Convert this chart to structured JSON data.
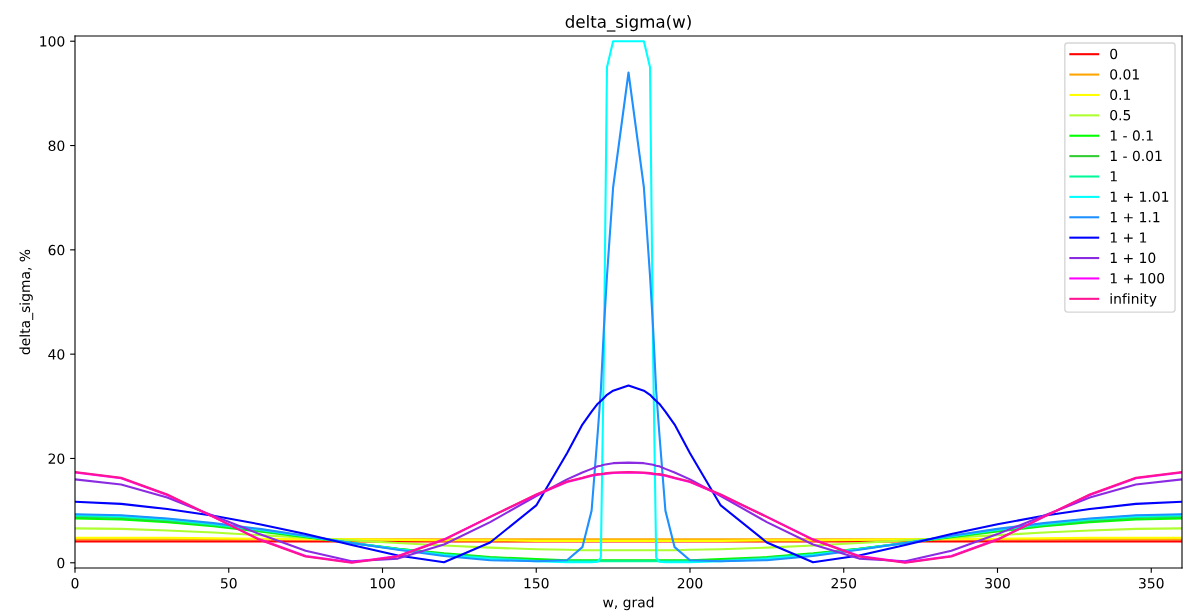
{
  "chart_data": {
    "type": "line",
    "title": "delta_sigma(w)",
    "xlabel": "w, grad",
    "ylabel": "delta_sigma, %",
    "x": [
      0,
      15,
      30,
      45,
      60,
      75,
      90,
      105,
      120,
      135,
      150,
      160,
      165,
      168,
      170,
      171,
      172,
      173,
      175,
      180,
      185,
      187,
      188,
      189,
      190,
      192,
      195,
      200,
      210,
      225,
      240,
      255,
      270,
      285,
      300,
      315,
      330,
      345,
      360
    ],
    "xlim": [
      0,
      360
    ],
    "xticks": [
      0,
      50,
      100,
      150,
      200,
      250,
      300,
      350
    ],
    "ylim": [
      -1,
      101
    ],
    "yticks": [
      0,
      20,
      40,
      60,
      80,
      100
    ],
    "grid": false,
    "legend": "top right",
    "marker": "none",
    "line_style": "solid",
    "series": [
      {
        "name": "0",
        "color": "#ff0000",
        "values": [
          4.1,
          4.1,
          4.1,
          4.1,
          4.1,
          4.1,
          4.1,
          4.1,
          4.1,
          4.1,
          4.1,
          4.1,
          4.1,
          4.1,
          4.1,
          4.1,
          4.1,
          4.1,
          4.1,
          4.1,
          4.1,
          4.1,
          4.1,
          4.1,
          4.1,
          4.1,
          4.1,
          4.1,
          4.1,
          4.1,
          4.1,
          4.1,
          4.1,
          4.1,
          4.1,
          4.1,
          4.1,
          4.1,
          4.1
        ]
      },
      {
        "name": "0.01",
        "color": "#ffa500",
        "values": [
          4.5,
          4.5,
          4.5,
          4.5,
          4.5,
          4.5,
          4.5,
          4.5,
          4.5,
          4.5,
          4.5,
          4.5,
          4.5,
          4.5,
          4.5,
          4.5,
          4.5,
          4.5,
          4.5,
          4.5,
          4.5,
          4.5,
          4.5,
          4.5,
          4.5,
          4.5,
          4.5,
          4.5,
          4.5,
          4.5,
          4.5,
          4.5,
          4.5,
          4.5,
          4.5,
          4.5,
          4.5,
          4.5,
          4.5
        ]
      },
      {
        "name": "0.1",
        "color": "#ffff00",
        "values": [
          4.8,
          4.8,
          4.8,
          4.7,
          4.6,
          4.5,
          4.5,
          4.4,
          4.3,
          4.3,
          4.2,
          4.2,
          4.2,
          4.2,
          4.2,
          4.2,
          4.2,
          4.2,
          4.2,
          4.2,
          4.2,
          4.2,
          4.2,
          4.2,
          4.2,
          4.2,
          4.2,
          4.2,
          4.2,
          4.3,
          4.3,
          4.4,
          4.5,
          4.5,
          4.6,
          4.7,
          4.8,
          4.8,
          4.8
        ]
      },
      {
        "name": "0.5",
        "color": "#adff2f",
        "values": [
          6.6,
          6.5,
          6.2,
          5.8,
          5.3,
          4.8,
          4.3,
          3.8,
          3.3,
          2.9,
          2.6,
          2.5,
          2.4,
          2.4,
          2.4,
          2.4,
          2.4,
          2.4,
          2.4,
          2.4,
          2.4,
          2.4,
          2.4,
          2.4,
          2.4,
          2.4,
          2.4,
          2.5,
          2.6,
          2.9,
          3.3,
          3.8,
          4.3,
          4.8,
          5.3,
          5.8,
          6.2,
          6.5,
          6.6
        ]
      },
      {
        "name": "1 - 0.1",
        "color": "#00ff00",
        "values": [
          8.5,
          8.3,
          7.8,
          7.0,
          6.0,
          4.9,
          3.8,
          2.7,
          1.8,
          1.1,
          0.7,
          0.5,
          0.5,
          0.5,
          0.5,
          0.5,
          0.5,
          0.5,
          0.5,
          0.5,
          0.5,
          0.5,
          0.5,
          0.5,
          0.5,
          0.5,
          0.5,
          0.5,
          0.7,
          1.1,
          1.8,
          2.7,
          3.8,
          4.9,
          6.0,
          7.0,
          7.8,
          8.3,
          8.5
        ]
      },
      {
        "name": "1 - 0.01",
        "color": "#32cd32",
        "values": [
          8.8,
          8.6,
          8.0,
          7.2,
          6.2,
          5.0,
          3.8,
          2.7,
          1.7,
          1.0,
          0.5,
          0.4,
          0.4,
          0.4,
          0.4,
          0.4,
          0.4,
          0.4,
          0.4,
          0.4,
          0.4,
          0.4,
          0.4,
          0.4,
          0.4,
          0.4,
          0.4,
          0.4,
          0.5,
          1.0,
          1.7,
          2.7,
          3.8,
          5.0,
          6.2,
          7.2,
          8.0,
          8.6,
          8.8
        ]
      },
      {
        "name": "1",
        "color": "#00fa9a",
        "values": [
          9.0,
          8.8,
          8.2,
          7.3,
          6.3,
          5.1,
          3.8,
          2.6,
          1.6,
          0.9,
          0.4,
          0.3,
          0.3,
          0.3,
          0.3,
          0.3,
          0.3,
          0.3,
          0.3,
          0.3,
          0.3,
          0.3,
          0.3,
          0.3,
          0.3,
          0.3,
          0.3,
          0.3,
          0.4,
          0.9,
          1.6,
          2.6,
          3.8,
          5.1,
          6.3,
          7.3,
          8.2,
          8.8,
          9.0
        ]
      },
      {
        "name": "1 + 1.01",
        "color": "#00ffff",
        "values": [
          9.2,
          9.0,
          8.4,
          7.5,
          6.4,
          5.1,
          3.8,
          2.6,
          1.5,
          0.7,
          0.3,
          0.1,
          0.1,
          0.1,
          0.2,
          1,
          40,
          95,
          100,
          100,
          100,
          95,
          40,
          1,
          0.2,
          0.1,
          0.1,
          0.1,
          0.3,
          0.7,
          1.5,
          2.6,
          3.8,
          5.1,
          6.4,
          7.5,
          8.4,
          9.0,
          9.2
        ]
      },
      {
        "name": "1 + 1.1",
        "color": "#1e90ff",
        "values": [
          9.3,
          9.1,
          8.5,
          7.6,
          6.5,
          5.2,
          3.8,
          2.5,
          1.3,
          0.5,
          0.3,
          0.5,
          3,
          10,
          25,
          33,
          45,
          55,
          72,
          94,
          72,
          55,
          45,
          33,
          25,
          10,
          3,
          0.5,
          0.3,
          0.5,
          1.3,
          2.5,
          3.8,
          5.2,
          6.5,
          7.6,
          8.5,
          9.1,
          9.3
        ]
      },
      {
        "name": "1 + 1",
        "color": "#0000ff",
        "values": [
          11.7,
          11.3,
          10.3,
          9.0,
          7.4,
          5.5,
          3.4,
          1.4,
          0.1,
          3.9,
          11,
          21,
          26.5,
          29,
          30.5,
          31,
          31.6,
          32.2,
          33,
          34,
          33,
          32.2,
          31.6,
          31,
          30.5,
          29,
          26.5,
          21,
          11,
          3.9,
          0.1,
          1.4,
          3.4,
          5.5,
          7.4,
          9.0,
          10.3,
          11.3,
          11.7
        ]
      },
      {
        "name": "1 + 10",
        "color": "#8a2be2",
        "values": [
          16,
          15,
          12.5,
          9,
          5.5,
          2.3,
          0.3,
          0.8,
          3.5,
          7.8,
          12.8,
          16,
          17.3,
          18,
          18.5,
          18.6,
          18.8,
          18.9,
          19.1,
          19.2,
          19.1,
          18.9,
          18.8,
          18.6,
          18.5,
          18,
          17.3,
          16,
          12.8,
          7.8,
          3.5,
          0.8,
          0.3,
          2.3,
          5.5,
          9,
          12.5,
          15,
          16
        ]
      },
      {
        "name": "1 + 100",
        "color": "#ff00ff",
        "values": [
          17.3,
          16.2,
          13.0,
          8.8,
          4.5,
          1.3,
          0.1,
          1.3,
          4.5,
          8.8,
          13.0,
          15.5,
          16.2,
          16.7,
          16.9,
          17.0,
          17.0,
          17.1,
          17.2,
          17.3,
          17.2,
          17.1,
          17.0,
          17.0,
          16.9,
          16.7,
          16.2,
          15.5,
          13.0,
          8.8,
          4.5,
          1.3,
          0.1,
          1.3,
          4.5,
          8.8,
          13.0,
          16.2,
          17.3
        ]
      },
      {
        "name": "infinity",
        "color": "#ff1493",
        "values": [
          17.4,
          16.3,
          13.1,
          8.8,
          4.4,
          1.2,
          0,
          1.2,
          4.4,
          8.8,
          13.1,
          15.6,
          16.3,
          16.8,
          17.0,
          17.0,
          17.1,
          17.2,
          17.3,
          17.4,
          17.3,
          17.2,
          17.1,
          17.0,
          17.0,
          16.8,
          16.3,
          15.6,
          13.1,
          8.8,
          4.4,
          1.2,
          0,
          1.2,
          4.4,
          8.8,
          13.1,
          16.3,
          17.4
        ]
      }
    ]
  }
}
